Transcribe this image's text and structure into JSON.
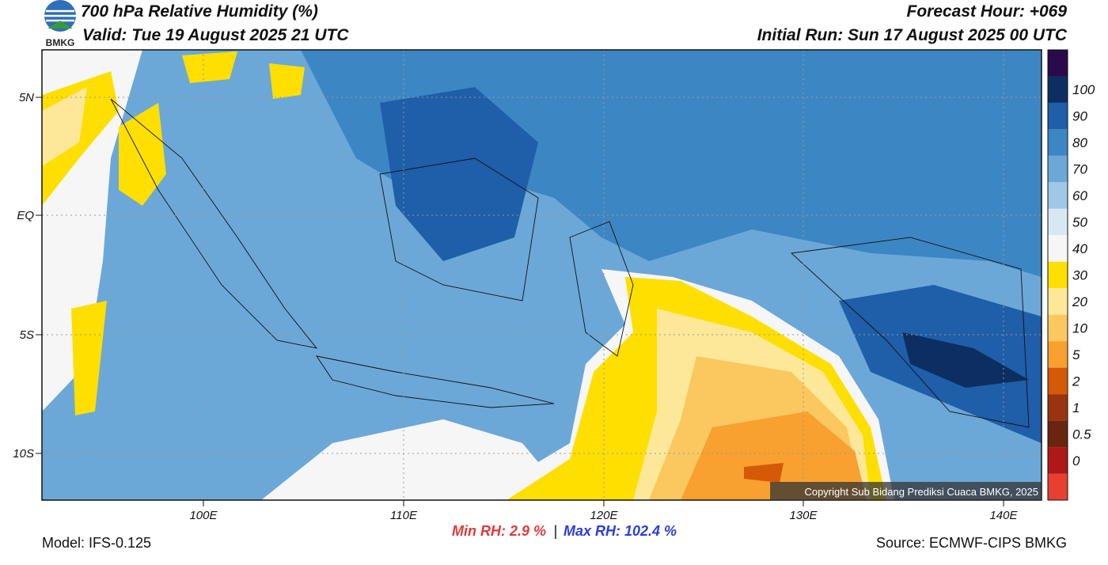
{
  "header": {
    "title": "700 hPa Relative Humidity (%)",
    "valid": "Valid: Tue 19 August 2025 21 UTC",
    "forecast_hour": "Forecast Hour: +069",
    "initial_run": "Initial Run: Sun 17 August 2025 00 UTC",
    "logo_text": "BMKG"
  },
  "map": {
    "lat_labels": [
      "5N",
      "EQ",
      "5S",
      "10S"
    ],
    "lon_labels": [
      "100E",
      "110E",
      "120E",
      "130E",
      "140E"
    ],
    "copyright": "Copyright Sub Bidang Prediksi Cuaca BMKG, 2025"
  },
  "colorbar": {
    "labels": [
      "100",
      "90",
      "80",
      "70",
      "60",
      "50",
      "40",
      "30",
      "20",
      "10",
      "5",
      "2",
      "1",
      "0.5",
      "0"
    ],
    "colors": [
      "#2a0a4a",
      "#0d2e60",
      "#1f5ea8",
      "#3d86c4",
      "#6ba8d8",
      "#9dc8e6",
      "#d8e8f2",
      "#f6f6f6",
      "#ffdf00",
      "#fde89a",
      "#fbc860",
      "#f8a030",
      "#d45a08",
      "#9a3410",
      "#6a2510",
      "#b01818",
      "#e84030"
    ]
  },
  "footer": {
    "model": "Model: IFS-0.125",
    "min_rh": "Min RH:   2.9 %",
    "separator": "|",
    "max_rh": "Max RH: 102.4 %",
    "source": "Source: ECMWF-CIPS BMKG"
  }
}
